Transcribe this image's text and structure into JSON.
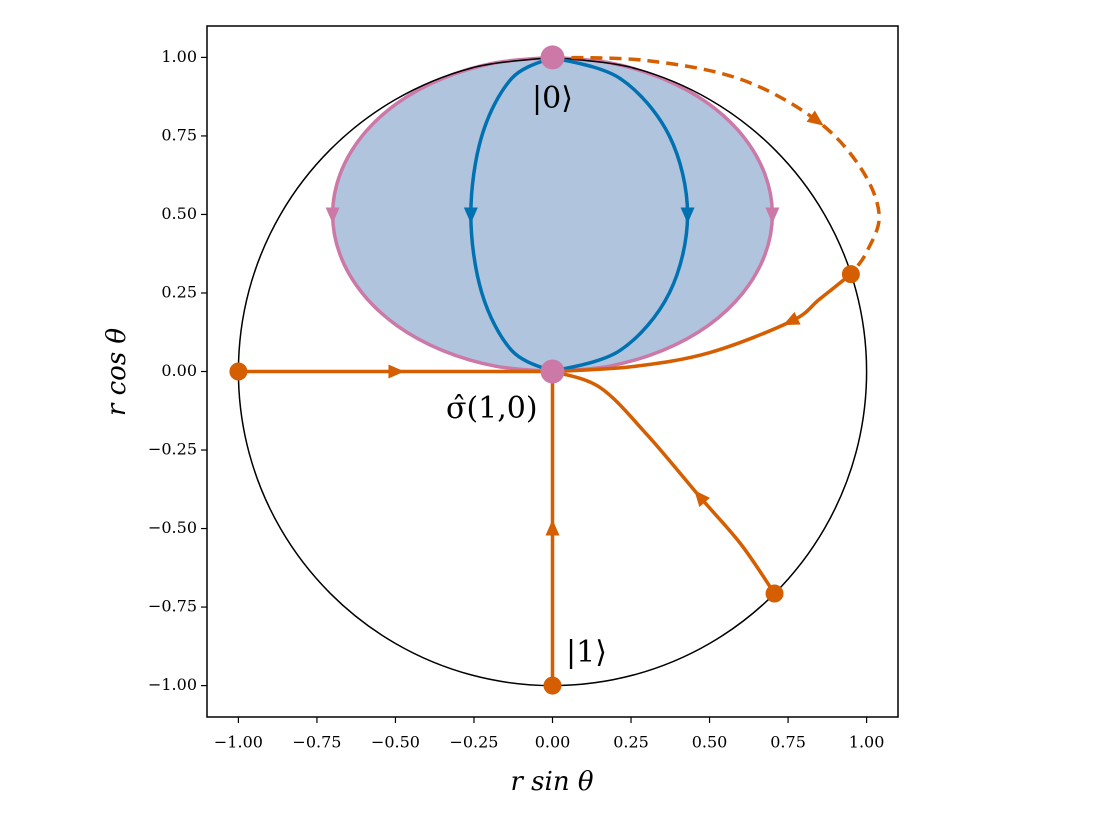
{
  "chart_data": {
    "type": "line",
    "xlabel": "r sin θ",
    "ylabel": "r cos θ",
    "xlim": [
      -1.1,
      1.1
    ],
    "ylim": [
      -1.1,
      1.1
    ],
    "xticks": [
      {
        "value": -1,
        "label": "−1.00"
      },
      {
        "value": -0.75,
        "label": "−0.75"
      },
      {
        "value": -0.5,
        "label": "−0.50"
      },
      {
        "value": -0.25,
        "label": "−0.25"
      },
      {
        "value": 0,
        "label": "0.00"
      },
      {
        "value": 0.25,
        "label": "0.25"
      },
      {
        "value": 0.5,
        "label": "0.50"
      },
      {
        "value": 0.75,
        "label": "0.75"
      },
      {
        "value": 1,
        "label": "1.00"
      }
    ],
    "yticks": [
      {
        "value": -1,
        "label": "−1.00"
      },
      {
        "value": -0.75,
        "label": "−0.75"
      },
      {
        "value": -0.5,
        "label": "−0.50"
      },
      {
        "value": -0.25,
        "label": "−0.25"
      },
      {
        "value": 0,
        "label": "0.00"
      },
      {
        "value": 0.25,
        "label": "0.25"
      },
      {
        "value": 0.5,
        "label": "0.50"
      },
      {
        "value": 0.75,
        "label": "0.75"
      },
      {
        "value": 1,
        "label": "1.00"
      }
    ],
    "annotations": [
      "|0⟩",
      "σ̂(1,0)",
      "|1⟩"
    ],
    "series": [
      {
        "color": "#cc79a7",
        "fill": "#b0c4de",
        "arrow": true,
        "x": [
          0,
          0.181,
          0.35,
          0.495,
          0.606,
          0.676,
          0.7,
          0.676,
          0.606,
          0.495,
          0.35,
          0.181,
          0
        ],
        "values": [
          1,
          0.983,
          0.933,
          0.854,
          0.75,
          0.629,
          0.5,
          0.371,
          0.25,
          0.146,
          0.067,
          0.017,
          0
        ]
      },
      {
        "color": "#cc79a7",
        "fill": "#b0c4de",
        "arrow": true,
        "x": [
          0,
          -0.181,
          -0.35,
          -0.495,
          -0.606,
          -0.676,
          -0.7,
          -0.676,
          -0.606,
          -0.495,
          -0.35,
          -0.181,
          0
        ],
        "values": [
          1,
          0.983,
          0.933,
          0.854,
          0.75,
          0.629,
          0.5,
          0.371,
          0.25,
          0.146,
          0.067,
          0.017,
          0
        ]
      },
      {
        "color": "#000000",
        "arrow": false,
        "x": [
          0,
          0.259,
          0.5,
          0.707,
          0.866,
          0.966,
          1,
          0.966,
          0.866,
          0.707,
          0.5,
          0.259,
          0,
          -0.259,
          -0.5,
          -0.707,
          -0.866,
          -0.966,
          -1,
          -0.966,
          -0.866,
          -0.707,
          -0.5,
          -0.259,
          0
        ],
        "values": [
          1,
          0.966,
          0.866,
          0.707,
          0.5,
          0.259,
          0,
          -0.259,
          -0.5,
          -0.707,
          -0.866,
          -0.966,
          -1,
          -0.966,
          -0.866,
          -0.707,
          -0.5,
          -0.259,
          0,
          0.259,
          0.5,
          0.707,
          0.866,
          0.966,
          1
        ]
      },
      {
        "color": "#0072b2",
        "arrow": true,
        "x": [
          0,
          0.215,
          0.372,
          0.43,
          0.372,
          0.215,
          0
        ],
        "values": [
          1,
          0.933,
          0.75,
          0.5,
          0.25,
          0.067,
          0
        ]
      },
      {
        "color": "#0072b2",
        "arrow": true,
        "x": [
          0,
          -0.13,
          -0.225,
          -0.26,
          -0.225,
          -0.13,
          0
        ],
        "values": [
          1,
          0.933,
          0.75,
          0.5,
          0.25,
          0.067,
          0
        ]
      },
      {
        "color": "#d55e00",
        "arrow": true,
        "x": [
          -1,
          -0.5,
          0
        ],
        "values": [
          0,
          0,
          0
        ]
      },
      {
        "color": "#d55e00",
        "arrow": true,
        "x": [
          0,
          0,
          0
        ],
        "values": [
          -1,
          -0.5,
          0
        ]
      },
      {
        "color": "#d55e00",
        "arrow": true,
        "x": [
          0.707,
          0.6,
          0.47,
          0.3,
          0.15,
          0
        ],
        "values": [
          -0.707,
          -0.55,
          -0.4,
          -0.2,
          -0.05,
          0
        ]
      },
      {
        "color": "#d55e00",
        "arrow": true,
        "x": [
          0.95,
          0.85,
          0.76,
          0.5,
          0.25,
          0
        ],
        "values": [
          0.31,
          0.23,
          0.16,
          0.06,
          0.015,
          0
        ]
      },
      {
        "color": "#d55e00",
        "arrow": true,
        "linestyle": "dashed",
        "x": [
          0,
          0.3,
          0.6,
          0.84,
          0.98,
          1.04,
          1.0,
          0.95
        ],
        "values": [
          1,
          0.99,
          0.93,
          0.8,
          0.65,
          0.5,
          0.38,
          0.31
        ]
      },
      {
        "color": "#cc79a7",
        "mode": "markers",
        "x": [
          0,
          0
        ],
        "values": [
          1,
          0
        ]
      },
      {
        "color": "#d55e00",
        "mode": "markers",
        "x": [
          -1,
          0,
          0.707,
          0.95
        ],
        "values": [
          0,
          -1,
          -0.707,
          0.31
        ]
      }
    ]
  }
}
